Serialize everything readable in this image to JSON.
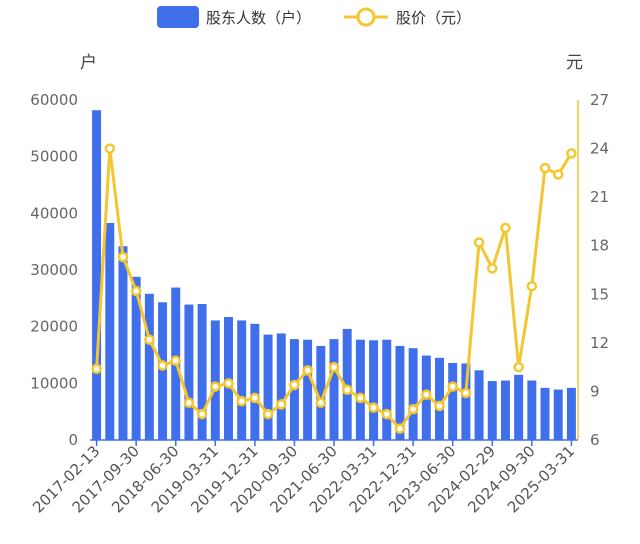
{
  "chart_data": {
    "type": "bar+line",
    "legend": {
      "placement": "top-center",
      "items": [
        {
          "label": "股东人数（户）",
          "kind": "bar",
          "color": "#3f6fea"
        },
        {
          "label": "股价（元）",
          "kind": "line",
          "color": "#f4c731"
        }
      ]
    },
    "left_axis": {
      "unit": "户",
      "min": 0,
      "max": 60000,
      "ticks": [
        "0",
        "10000",
        "20000",
        "30000",
        "40000",
        "50000",
        "60000"
      ]
    },
    "right_axis": {
      "unit": "元",
      "min": 6,
      "max": 27,
      "ticks": [
        "6",
        "9",
        "12",
        "15",
        "18",
        "21",
        "24",
        "27"
      ]
    },
    "x_tick_labels": [
      "2017-02-13",
      "2017-09-30",
      "2018-06-30",
      "2019-03-31",
      "2019-12-31",
      "2020-09-30",
      "2021-06-30",
      "2022-03-31",
      "2022-12-31",
      "2023-06-30",
      "2024-02-29",
      "2024-09-30",
      "2025-03-31"
    ],
    "series": [
      {
        "name": "股东人数（户）",
        "type": "bar",
        "color": "#3f6fea",
        "values": [
          58200,
          38300,
          34200,
          28800,
          25800,
          24300,
          26900,
          23900,
          24000,
          21100,
          21700,
          21100,
          20500,
          18600,
          18800,
          17800,
          17700,
          16600,
          17800,
          19600,
          17700,
          17600,
          17700,
          16600,
          16200,
          14900,
          14500,
          13600,
          13500,
          12300,
          10400,
          10500,
          11500,
          10500,
          9200,
          8900,
          9200
        ]
      },
      {
        "name": "股价（元）",
        "type": "line",
        "color": "#f4c731",
        "values": [
          10.4,
          24.0,
          17.3,
          15.2,
          12.2,
          10.6,
          10.9,
          8.3,
          7.6,
          9.3,
          9.5,
          8.4,
          8.6,
          7.6,
          8.2,
          9.4,
          10.3,
          8.3,
          10.5,
          9.1,
          8.6,
          8.0,
          7.6,
          6.7,
          7.9,
          8.8,
          8.1,
          9.3,
          8.9,
          18.2,
          16.6,
          19.1,
          10.5,
          15.5,
          22.8,
          22.4,
          23.7
        ]
      }
    ]
  }
}
